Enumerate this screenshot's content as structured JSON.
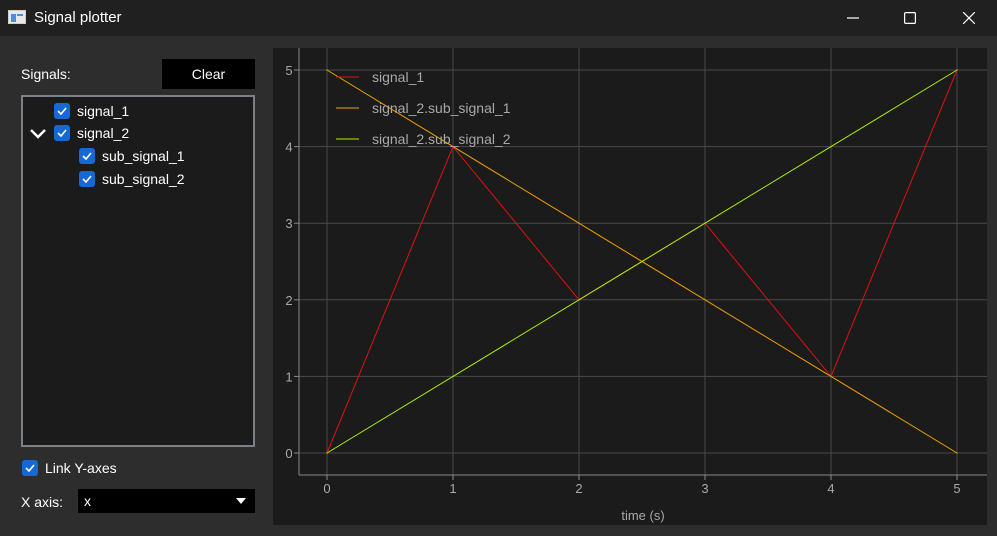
{
  "window": {
    "title": "Signal plotter",
    "icons": [
      "app-icon",
      "minimize-icon",
      "maximize-icon",
      "close-icon"
    ]
  },
  "sidebar": {
    "signals_label": "Signals:",
    "clear_label": "Clear",
    "tree": [
      {
        "label": "signal_1",
        "checked": true,
        "level": 0
      },
      {
        "label": "signal_2",
        "checked": true,
        "level": 0,
        "expanded": true
      },
      {
        "label": "sub_signal_1",
        "checked": true,
        "level": 1
      },
      {
        "label": "sub_signal_2",
        "checked": true,
        "level": 1
      }
    ],
    "link_y_axes_label": "Link Y-axes",
    "link_y_axes_checked": true,
    "x_axis_label": "X axis:",
    "x_axis_value": "x"
  },
  "colors": {
    "checkbox": "#1669d4",
    "signal_1": "#e01010",
    "sub_signal_1": "#f0a000",
    "sub_signal_2": "#a8f000"
  },
  "chart_data": {
    "type": "line",
    "xlabel": "time (s)",
    "ylabel": "",
    "xlim": [
      0,
      5
    ],
    "ylim": [
      0,
      5
    ],
    "xticks": [
      "0",
      "1",
      "2",
      "3",
      "4",
      "5"
    ],
    "yticks": [
      "0",
      "1",
      "2",
      "3",
      "4",
      "5"
    ],
    "grid": true,
    "legend": "top-left",
    "series": [
      {
        "name": "signal_1",
        "color": "#e01010",
        "x": [
          0,
          1,
          2,
          3,
          4,
          5
        ],
        "y": [
          0,
          4,
          2,
          3,
          1,
          5
        ]
      },
      {
        "name": "signal_2.sub_signal_1",
        "color": "#f0a000",
        "x": [
          0,
          1,
          2,
          3,
          4,
          5
        ],
        "y": [
          5,
          4,
          3,
          2,
          1,
          0
        ]
      },
      {
        "name": "signal_2.sub_signal_2",
        "color": "#a8f000",
        "x": [
          0,
          1,
          2,
          3,
          4,
          5
        ],
        "y": [
          0,
          1,
          2,
          3,
          4,
          5
        ]
      }
    ]
  }
}
